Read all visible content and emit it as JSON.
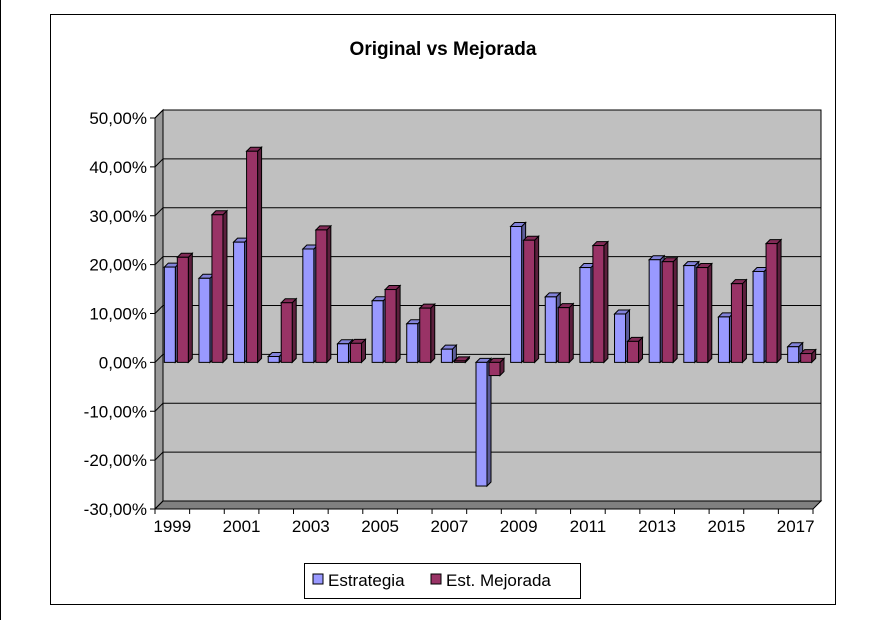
{
  "chart_data": {
    "type": "bar",
    "title": "Original vs Mejorada",
    "categories": [
      "1999",
      "2000",
      "2001",
      "2002",
      "2003",
      "2004",
      "2005",
      "2006",
      "2007",
      "2008",
      "2009",
      "2010",
      "2011",
      "2012",
      "2013",
      "2014",
      "2015",
      "2016",
      "2017"
    ],
    "category_tick_labels": [
      "1999",
      "",
      "2001",
      "",
      "2003",
      "",
      "2005",
      "",
      "2007",
      "",
      "2009",
      "",
      "2011",
      "",
      "2013",
      "",
      "2015",
      "",
      "2017"
    ],
    "series": [
      {
        "name": "Estrategia",
        "color": "#9999FF",
        "values": [
          19.5,
          17.2,
          24.6,
          1.2,
          23.2,
          3.8,
          12.6,
          7.9,
          2.7,
          -25.3,
          27.8,
          13.4,
          19.4,
          9.9,
          21.0,
          19.8,
          9.3,
          18.6,
          3.2
        ]
      },
      {
        "name": "Est. Mejorada",
        "color": "#993366",
        "values": [
          21.5,
          30.2,
          43.2,
          12.2,
          27.1,
          3.9,
          14.9,
          11.1,
          0.3,
          -2.7,
          25.0,
          11.2,
          23.9,
          4.3,
          20.6,
          19.4,
          16.1,
          24.3,
          1.8
        ]
      }
    ],
    "ylim": [
      -30,
      50
    ],
    "yticks": [
      -30,
      -20,
      -10,
      0,
      10,
      20,
      30,
      40,
      50
    ],
    "ytick_labels": [
      "-30,00%",
      "-20,00%",
      "-10,00%",
      "0,00%",
      "10,00%",
      "20,00%",
      "30,00%",
      "40,00%",
      "50,00%"
    ],
    "y_unit": "%",
    "grid": true,
    "legend_position": "bottom",
    "plot_background": "#C0C0C0",
    "bar_edge_color": "#000000"
  }
}
